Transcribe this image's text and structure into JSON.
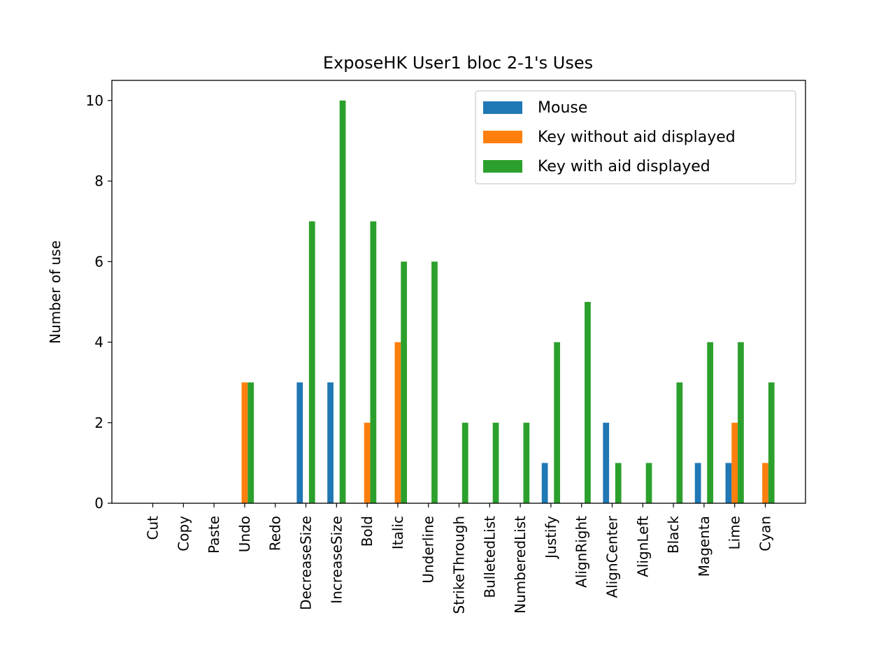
{
  "chart_data": {
    "type": "bar",
    "title": "ExposeHK User1 bloc 2-1's Uses",
    "xlabel": "",
    "ylabel": "Number of use",
    "ylim": [
      0,
      10.5
    ],
    "yticks": [
      0,
      2,
      4,
      6,
      8,
      10
    ],
    "ytick_labels": [
      "0",
      "2",
      "4",
      "6",
      "8",
      "10"
    ],
    "grid": false,
    "legend_position": "top-right",
    "categories": [
      "Cut",
      "Copy",
      "Paste",
      "Undo",
      "Redo",
      "DecreaseSize",
      "IncreaseSize",
      "Bold",
      "Italic",
      "Underline",
      "StrikeThrough",
      "BulletedList",
      "NumberedList",
      "Justify",
      "AlignRight",
      "AlignCenter",
      "AlignLeft",
      "Black",
      "Magenta",
      "Lime",
      "Cyan"
    ],
    "series": [
      {
        "name": "Mouse",
        "color": "#1f77b4",
        "values": [
          0,
          0,
          0,
          0,
          0,
          3,
          3,
          0,
          0,
          0,
          0,
          0,
          0,
          1,
          0,
          2,
          0,
          0,
          1,
          1,
          0
        ]
      },
      {
        "name": "Key without aid displayed",
        "color": "#ff7f0e",
        "values": [
          0,
          0,
          0,
          3,
          0,
          0,
          0,
          2,
          4,
          0,
          0,
          0,
          0,
          0,
          0,
          0,
          0,
          0,
          0,
          2,
          1
        ]
      },
      {
        "name": "Key with aid displayed",
        "color": "#2ca02c",
        "values": [
          0,
          0,
          0,
          3,
          0,
          7,
          10,
          7,
          6,
          6,
          2,
          2,
          2,
          4,
          5,
          1,
          1,
          3,
          4,
          4,
          3
        ]
      }
    ]
  }
}
